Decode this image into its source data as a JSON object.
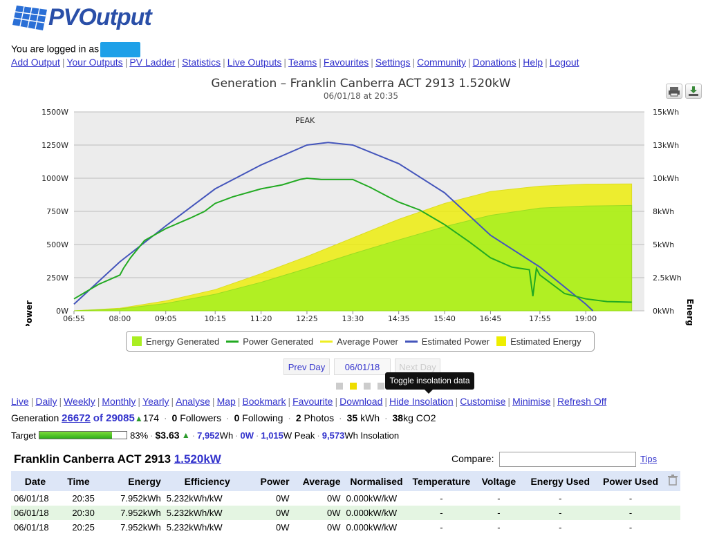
{
  "logo": {
    "text": "PVOutput"
  },
  "login": {
    "text": "You are logged in as"
  },
  "topnav": [
    "Add Output",
    "Your Outputs",
    "PV Ladder",
    "Statistics",
    "Live Outputs",
    "Teams",
    "Favourites",
    "Settings",
    "Community",
    "Donations",
    "Help",
    "Logout"
  ],
  "chart": {
    "title": "Generation – Franklin Canberra ACT 2913 1.520kW",
    "subtitle": "06/01/18 at 20:35",
    "peak_label": "PEAK",
    "left_axis_label": "Power",
    "right_axis_label": "Energy",
    "left_ticks": [
      "1500W",
      "1250W",
      "1000W",
      "750W",
      "500W",
      "250W",
      "0W"
    ],
    "right_ticks": [
      "15kWh",
      "13kWh",
      "10kWh",
      "8kWh",
      "5kWh",
      "2.5kWh",
      "0kWh"
    ],
    "x_ticks": [
      "06:55",
      "08:00",
      "09:05",
      "10:15",
      "11:20",
      "12:25",
      "13:30",
      "14:35",
      "15:40",
      "16:45",
      "17:55",
      "19:00"
    ],
    "legend": [
      {
        "label": "Energy Generated",
        "kind": "box",
        "color": "#aaee22"
      },
      {
        "label": "Power Generated",
        "kind": "line",
        "color": "#22aa22"
      },
      {
        "label": "Average Power",
        "kind": "line",
        "color": "#eeee22"
      },
      {
        "label": "Estimated Power",
        "kind": "line",
        "color": "#4455bb"
      },
      {
        "label": "Estimated Energy",
        "kind": "box",
        "color": "#eeee00"
      }
    ]
  },
  "chart_data": {
    "type": "area",
    "title": "Generation – Franklin Canberra ACT 2913 1.520kW",
    "subtitle": "06/01/18 at 20:35",
    "x_unit": "time",
    "ylabel": "Power",
    "ylabel_right": "Energy",
    "ylim": [
      0,
      1500
    ],
    "ylim_right_kwh": [
      0,
      15
    ],
    "legend_position": "bottom",
    "grid": true,
    "series": [
      {
        "name": "Power Generated",
        "axis": "left",
        "x": [
          "06:55",
          "07:30",
          "08:00",
          "08:05",
          "08:15",
          "08:35",
          "09:05",
          "09:40",
          "10:00",
          "10:15",
          "10:40",
          "11:20",
          "11:50",
          "12:15",
          "12:25",
          "12:45",
          "13:05",
          "13:30",
          "13:55",
          "14:20",
          "14:35",
          "15:05",
          "15:40",
          "16:15",
          "16:45",
          "17:15",
          "17:40",
          "17:45",
          "17:50",
          "17:55",
          "18:05",
          "18:30",
          "19:00",
          "19:30",
          "20:05"
        ],
        "values": [
          90,
          200,
          270,
          320,
          400,
          530,
          620,
          700,
          750,
          810,
          860,
          920,
          950,
          990,
          1000,
          990,
          990,
          990,
          930,
          860,
          820,
          760,
          650,
          520,
          400,
          330,
          310,
          110,
          320,
          270,
          230,
          130,
          90,
          70,
          65
        ]
      },
      {
        "name": "Estimated Power",
        "axis": "left",
        "x": [
          "06:55",
          "08:00",
          "09:05",
          "10:15",
          "11:20",
          "12:25",
          "12:55",
          "13:30",
          "14:35",
          "15:40",
          "16:45",
          "17:55",
          "19:00",
          "19:10"
        ],
        "values": [
          50,
          370,
          640,
          920,
          1100,
          1250,
          1270,
          1250,
          1110,
          890,
          570,
          330,
          50,
          0
        ]
      },
      {
        "name": "Energy Generated",
        "axis": "right",
        "x": [
          "06:55",
          "08:00",
          "09:05",
          "10:15",
          "11:20",
          "12:25",
          "13:30",
          "14:35",
          "15:40",
          "16:45",
          "17:55",
          "19:00",
          "20:05"
        ],
        "values": [
          0,
          0.15,
          0.55,
          1.25,
          2.15,
          3.2,
          4.3,
          5.35,
          6.35,
          7.2,
          7.75,
          7.9,
          7.95
        ]
      },
      {
        "name": "Estimated Energy",
        "axis": "right",
        "x": [
          "06:55",
          "08:00",
          "09:05",
          "10:15",
          "11:20",
          "12:25",
          "13:30",
          "14:35",
          "15:40",
          "16:45",
          "17:55",
          "19:00",
          "20:05"
        ],
        "values": [
          0,
          0.2,
          0.75,
          1.6,
          2.8,
          4.1,
          5.5,
          6.9,
          8.1,
          9.0,
          9.4,
          9.55,
          9.57
        ]
      }
    ]
  },
  "daynav": {
    "prev": "Prev Day",
    "current": "06/01/18",
    "next": "Next Day"
  },
  "tooltip": "Toggle insolation data",
  "viewnav": [
    "Live",
    "Daily",
    "Weekly",
    "Monthly",
    "Yearly",
    "Analyse",
    "Map",
    "Bookmark",
    "Favourite",
    "Download",
    "Hide Insolation",
    "Customise",
    "Minimise",
    "Refresh Off"
  ],
  "stats": {
    "generation_label": "Generation",
    "rank": "26672",
    "of_total": "of 29085",
    "rank_change": "174",
    "followers": "0",
    "followers_label": "Followers",
    "following": "0",
    "following_label": "Following",
    "photos": "2",
    "photos_label": "Photos",
    "kwh": "35",
    "kwh_label": "kWh",
    "co2": "38",
    "co2_label": "kg CO2",
    "target_label": "Target",
    "target_percent": 83,
    "target_text": "83%",
    "money": "$3.63",
    "energy_wh": "7,952",
    "wh": "Wh",
    "power_now": "0W",
    "peak": "1,015",
    "peak_label": "W Peak",
    "insolation": "9,573",
    "insolation_label": "Wh Insolation"
  },
  "system": {
    "name": "Franklin Canberra ACT 2913",
    "size": "1.520kW"
  },
  "compare": {
    "label": "Compare:",
    "value": "",
    "tips": "Tips"
  },
  "table": {
    "headers": [
      "Date",
      "Time",
      "Energy",
      "Efficiency",
      "Power",
      "Average",
      "Normalised",
      "Temperature",
      "Voltage",
      "Energy Used",
      "Power Used"
    ],
    "rows": [
      [
        "06/01/18",
        "20:35",
        "7.952kWh",
        "5.232kWh/kW",
        "0W",
        "0W",
        "0.000kW/kW",
        "-",
        "-",
        "-",
        "-"
      ],
      [
        "06/01/18",
        "20:30",
        "7.952kWh",
        "5.232kWh/kW",
        "0W",
        "0W",
        "0.000kW/kW",
        "-",
        "-",
        "-",
        "-"
      ],
      [
        "06/01/18",
        "20:25",
        "7.952kWh",
        "5.232kWh/kW",
        "0W",
        "0W",
        "0.000kW/kW",
        "-",
        "-",
        "-",
        "-"
      ]
    ]
  }
}
